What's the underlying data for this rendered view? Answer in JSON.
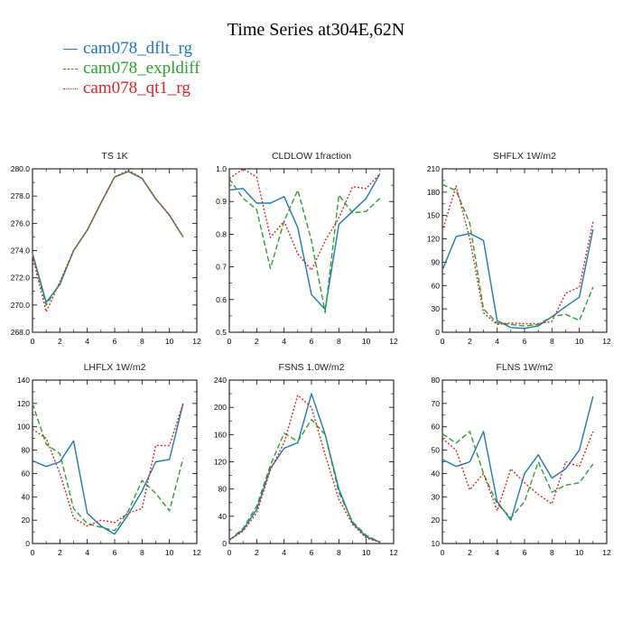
{
  "chart_data": {
    "title": "Time Series at304E,62N",
    "legend": [
      {
        "name": "cam078_dflt_rg",
        "color": "#1f77b4",
        "dash": "solid"
      },
      {
        "name": "cam078_expldiff",
        "color": "#2ca02c",
        "dash": "dashed"
      },
      {
        "name": "cam078_qt1_rg",
        "color": "#d62728",
        "dash": "dotted"
      }
    ],
    "panels": [
      {
        "type": "line",
        "title": "TS   1K",
        "x": [
          0,
          1,
          2,
          3,
          4,
          5,
          6,
          7,
          8,
          9,
          10,
          11
        ],
        "xlim": [
          0,
          12
        ],
        "xticks": [
          0,
          2,
          4,
          6,
          8,
          10,
          12
        ],
        "xtick_labels": [
          "0",
          "2",
          "4",
          "6",
          "8",
          "10",
          "12"
        ],
        "ylim": [
          268,
          280
        ],
        "yticks": [
          268,
          270,
          272,
          274,
          276,
          278,
          280
        ],
        "ytick_labels": [
          "268.0",
          "270.0",
          "272.0",
          "274.0",
          "276.0",
          "278.0",
          "280.0"
        ],
        "series": [
          {
            "name": "cam078_dflt_rg",
            "values": [
              273.8,
              270.2,
              271.5,
              274.0,
              275.5,
              277.5,
              279.4,
              279.8,
              279.3,
              277.8,
              276.6,
              275.0
            ]
          },
          {
            "name": "cam078_expldiff",
            "values": [
              273.7,
              270.0,
              271.6,
              274.0,
              275.5,
              277.5,
              279.4,
              279.8,
              279.3,
              277.8,
              276.6,
              275.0
            ]
          },
          {
            "name": "cam078_qt1_rg",
            "values": [
              273.6,
              269.5,
              271.7,
              274.0,
              275.5,
              277.5,
              279.4,
              279.9,
              279.3,
              277.8,
              276.6,
              275.0
            ]
          }
        ]
      },
      {
        "type": "line",
        "title": "CLDLOW   1fraction",
        "x": [
          0,
          1,
          2,
          3,
          4,
          5,
          6,
          7,
          8,
          9,
          10,
          11
        ],
        "xlim": [
          0,
          12
        ],
        "xticks": [
          0,
          2,
          4,
          6,
          8,
          10,
          12
        ],
        "xtick_labels": [
          "0",
          "2",
          "4",
          "6",
          "8",
          "10",
          "12"
        ],
        "ylim": [
          0.5,
          1.0
        ],
        "yticks": [
          0.5,
          0.6,
          0.7,
          0.8,
          0.9,
          1.0
        ],
        "ytick_labels": [
          "0.5",
          "0.6",
          "0.7",
          "0.8",
          "0.9",
          "1.0"
        ],
        "series": [
          {
            "name": "cam078_dflt_rg",
            "values": [
              0.935,
              0.94,
              0.895,
              0.895,
              0.915,
              0.82,
              0.615,
              0.57,
              0.83,
              0.87,
              0.91,
              0.985
            ]
          },
          {
            "name": "cam078_expldiff",
            "values": [
              0.97,
              0.91,
              0.875,
              0.695,
              0.84,
              0.935,
              0.78,
              0.56,
              0.92,
              0.865,
              0.87,
              0.91
            ]
          },
          {
            "name": "cam078_qt1_rg",
            "values": [
              0.97,
              1.0,
              0.975,
              0.79,
              0.84,
              0.74,
              0.69,
              0.78,
              0.85,
              0.945,
              0.94,
              0.985
            ]
          }
        ]
      },
      {
        "type": "line",
        "title": "SHFLX   1W/m2",
        "x": [
          0,
          1,
          2,
          3,
          4,
          5,
          6,
          7,
          8,
          9,
          10,
          11
        ],
        "xlim": [
          0,
          12
        ],
        "xticks": [
          0,
          2,
          4,
          6,
          8,
          10,
          12
        ],
        "xtick_labels": [
          "0",
          "2",
          "4",
          "6",
          "8",
          "10",
          "12"
        ],
        "ylim": [
          0,
          210
        ],
        "yticks": [
          0,
          30,
          60,
          90,
          120,
          150,
          180,
          210
        ],
        "ytick_labels": [
          "0",
          "30",
          "60",
          "90",
          "120",
          "150",
          "180",
          "210"
        ],
        "series": [
          {
            "name": "cam078_dflt_rg",
            "values": [
              80,
              123,
              127,
              118,
              15,
              6,
              5,
              8,
              20,
              33,
              45,
              132
            ]
          },
          {
            "name": "cam078_expldiff",
            "values": [
              190,
              182,
              140,
              30,
              12,
              10,
              8,
              10,
              20,
              23,
              15,
              58
            ]
          },
          {
            "name": "cam078_qt1_rg",
            "values": [
              130,
              188,
              120,
              25,
              10,
              12,
              11,
              11,
              14,
              50,
              58,
              142
            ]
          }
        ]
      },
      {
        "type": "line",
        "title": "LHFLX   1W/m2",
        "x": [
          0,
          1,
          2,
          3,
          4,
          5,
          6,
          7,
          8,
          9,
          10,
          11
        ],
        "xlim": [
          0,
          12
        ],
        "xticks": [
          0,
          2,
          4,
          6,
          8,
          10,
          12
        ],
        "xtick_labels": [
          "0",
          "2",
          "4",
          "6",
          "8",
          "10",
          "12"
        ],
        "ylim": [
          0,
          140
        ],
        "yticks": [
          0,
          20,
          40,
          60,
          80,
          100,
          120,
          140
        ],
        "ytick_labels": [
          "0",
          "20",
          "40",
          "60",
          "80",
          "100",
          "120",
          "140"
        ],
        "series": [
          {
            "name": "cam078_dflt_rg",
            "values": [
              71,
              66,
              70,
              88,
              26,
              15,
              8,
              25,
              45,
              70,
              72,
              120
            ]
          },
          {
            "name": "cam078_expldiff",
            "values": [
              120,
              85,
              77,
              30,
              17,
              14,
              11,
              28,
              54,
              43,
              28,
              73
            ]
          },
          {
            "name": "cam078_qt1_rg",
            "values": [
              98,
              90,
              60,
              22,
              15,
              20,
              18,
              26,
              30,
              84,
              84,
              120
            ]
          }
        ]
      },
      {
        "type": "line",
        "title": "FSNS   1.0W/m2",
        "x": [
          0,
          1,
          2,
          3,
          4,
          5,
          6,
          7,
          8,
          9,
          10,
          11
        ],
        "xlim": [
          0,
          12
        ],
        "xticks": [
          0,
          2,
          4,
          6,
          8,
          10,
          12
        ],
        "xtick_labels": [
          "0",
          "2",
          "4",
          "6",
          "8",
          "10",
          "12"
        ],
        "ylim": [
          0,
          240
        ],
        "yticks": [
          0,
          40,
          80,
          120,
          160,
          200,
          240
        ],
        "ytick_labels": [
          "0",
          "40",
          "80",
          "120",
          "160",
          "200",
          "240"
        ],
        "series": [
          {
            "name": "cam078_dflt_rg",
            "values": [
              5,
              20,
              50,
              110,
              140,
              148,
              220,
              160,
              80,
              30,
              10,
              2
            ]
          },
          {
            "name": "cam078_expldiff",
            "values": [
              5,
              22,
              55,
              115,
              162,
              150,
              182,
              160,
              75,
              32,
              12,
              2
            ]
          },
          {
            "name": "cam078_qt1_rg",
            "values": [
              5,
              18,
              45,
              108,
              148,
              218,
              200,
              130,
              65,
              28,
              8,
              2
            ]
          }
        ]
      },
      {
        "type": "line",
        "title": "FLNS   1W/m2",
        "x": [
          0,
          1,
          2,
          3,
          4,
          5,
          6,
          7,
          8,
          9,
          10,
          11
        ],
        "xlim": [
          0,
          12
        ],
        "xticks": [
          0,
          2,
          4,
          6,
          8,
          10,
          12
        ],
        "xtick_labels": [
          "0",
          "2",
          "4",
          "6",
          "8",
          "10",
          "12"
        ],
        "ylim": [
          10,
          80
        ],
        "yticks": [
          10,
          20,
          30,
          40,
          50,
          60,
          70,
          80
        ],
        "ytick_labels": [
          "10",
          "20",
          "30",
          "40",
          "50",
          "60",
          "70",
          "80"
        ],
        "series": [
          {
            "name": "cam078_dflt_rg",
            "values": [
              46,
              43,
              45,
              58,
              28,
              20,
              40,
              48,
              38,
              42,
              50,
              73
            ]
          },
          {
            "name": "cam078_expldiff",
            "values": [
              57,
              53,
              58,
              40,
              27,
              21,
              28,
              45,
              32,
              35,
              36,
              44
            ]
          },
          {
            "name": "cam078_qt1_rg",
            "values": [
              55,
              50,
              33,
              40,
              24,
              42,
              36,
              31,
              27,
              45,
              43,
              58
            ]
          }
        ]
      }
    ]
  }
}
